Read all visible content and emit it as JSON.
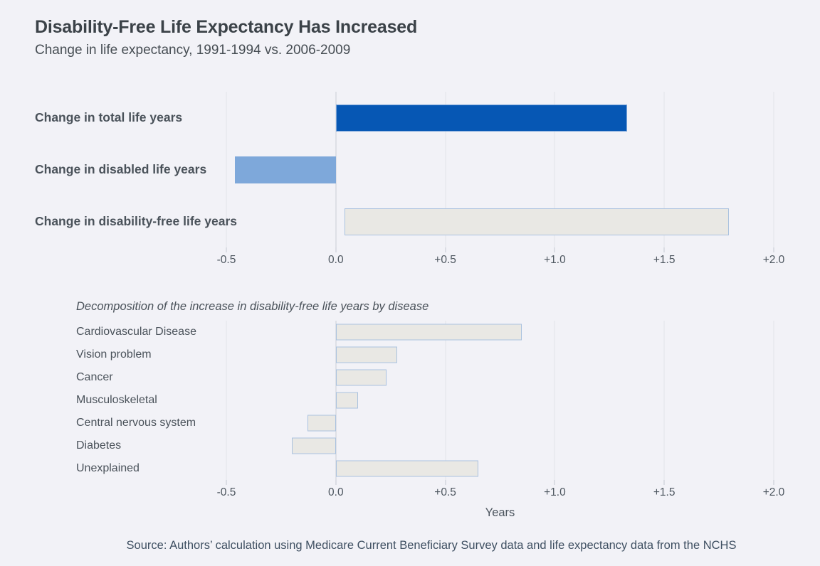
{
  "header": {
    "title": "Disability-Free Life Expectancy Has Increased",
    "subtitle": "Change in life expectancy, 1991-1994 vs. 2006-2009"
  },
  "source": "Source: Authors’ calculation using Medicare Current Beneficiary Survey data and life expectancy data from the NCHS",
  "colors": {
    "background": "#f2f2f7",
    "dark_blue_bar": "#0657b4",
    "light_blue_bar": "#7ea8da",
    "gray_bar_fill": "#e9e8e4",
    "gray_bar_border": "#aac2df",
    "gridline": "#e3e4ea",
    "zero_line": "#c9cdd5"
  },
  "chart_data": [
    {
      "type": "bar",
      "orientation": "horizontal",
      "title": "",
      "categories": [
        "Change in total life years",
        "Change in disabled life years",
        "Change in disability-free life years"
      ],
      "values": [
        1.33,
        -0.46,
        1.79
      ],
      "bar_styles": [
        "dark-blue",
        "light-blue",
        "gray-outline"
      ],
      "xlim": [
        -0.5,
        2.0
      ],
      "ticks": [
        -0.5,
        0,
        0.5,
        1,
        1.5,
        2
      ],
      "tick_labels": [
        "-0.5",
        "0.0",
        "+0.5",
        "+1.0",
        "+1.5",
        "+2.0"
      ],
      "xlabel": "",
      "grid": true,
      "legend": "none"
    },
    {
      "type": "bar",
      "orientation": "horizontal",
      "title": "Decomposition of the increase in disability-free life years by disease",
      "categories": [
        "Cardiovascular Disease",
        "Vision problem",
        "Cancer",
        "Musculoskeletal",
        "Central nervous system",
        "Diabetes",
        "Unexplained"
      ],
      "values": [
        0.85,
        0.28,
        0.23,
        0.1,
        -0.13,
        -0.2,
        0.65
      ],
      "bar_styles": [
        "gray-outline",
        "gray-outline",
        "gray-outline",
        "gray-outline",
        "gray-outline",
        "gray-outline",
        "gray-outline"
      ],
      "xlim": [
        -0.5,
        2.0
      ],
      "ticks": [
        -0.5,
        0,
        0.5,
        1,
        1.5,
        2
      ],
      "tick_labels": [
        "-0.5",
        "0.0",
        "+0.5",
        "+1.0",
        "+1.5",
        "+2.0"
      ],
      "xlabel": "Years",
      "grid": true,
      "legend": "none"
    }
  ]
}
